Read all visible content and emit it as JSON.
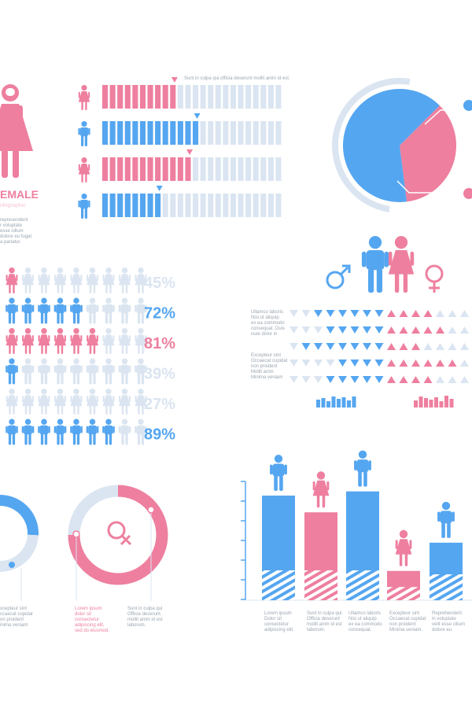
{
  "colors": {
    "pink": "#ee7f9f",
    "blue": "#55a6f0",
    "light": "#dbe5f1",
    "lightpink": "#f6c6d3"
  },
  "female_panel": {
    "title": "EMALE",
    "subtitle": "nfographic",
    "body": [
      "represendent",
      "r voluptate",
      "esse cillum",
      "dolore eu fugat",
      "a pariatur."
    ]
  },
  "bars_panel": {
    "caption": "Sunt in culpa qui officia deserunt mollit anim id est.",
    "rows": [
      {
        "gender": "female",
        "value": 0.4
      },
      {
        "gender": "male",
        "value": 0.55
      },
      {
        "gender": "female",
        "value": 0.48
      },
      {
        "gender": "male",
        "value": 0.34
      }
    ]
  },
  "donut_top": {
    "female": 0.48,
    "male": 0.52
  },
  "symbols_panel": {
    "left_text_1": [
      "Ullamco laboris",
      "Nisi ut aliquip",
      "ex ea commodo",
      "consequat. Duis",
      "nure dolor in"
    ],
    "left_text_2": [
      "Excepteur sint",
      "Occaecat cupidat",
      "non proident",
      "Mollit anim",
      "Minima veniam"
    ],
    "triangle_rows": [
      {
        "blue": 6,
        "pink": 4
      },
      {
        "blue": 5,
        "pink": 5
      },
      {
        "blue": 7,
        "pink": 3
      },
      {
        "blue": 4,
        "pink": 6
      },
      {
        "blue": 5,
        "pink": 4
      }
    ]
  },
  "people_rows": [
    {
      "gender": "female",
      "pct": "45%",
      "highlight": 1,
      "highlighted_text": false
    },
    {
      "gender": "male",
      "pct": "72%",
      "highlight": 5,
      "highlighted_text": true
    },
    {
      "gender": "female",
      "pct": "81%",
      "highlight": 6,
      "highlighted_text": true
    },
    {
      "gender": "male",
      "pct": "39%",
      "highlight": 1,
      "highlighted_text": false
    },
    {
      "gender": "female",
      "pct": "27%",
      "highlight": 0,
      "highlighted_text": false
    },
    {
      "gender": "male",
      "pct": "89%",
      "highlight": 7,
      "highlighted_text": true
    }
  ],
  "donut_left": {
    "text": [
      "xcepteur sint",
      "ccaecat cupidat",
      "on proident",
      "inima veniam"
    ]
  },
  "donut_female": {
    "value": 0.75,
    "text_left": [
      "Lorem ipsum",
      "dolor sit",
      "consectetur",
      "adipiscing elit,",
      "sed do eiusmod."
    ],
    "text_right": [
      "Sunt in culpa qui",
      "Officia deserunt",
      "mollit anim id est",
      "laborum."
    ]
  },
  "chart_data": {
    "type": "bar",
    "categories": [
      "male",
      "female",
      "male",
      "female",
      "male"
    ],
    "series": [
      {
        "values": [
          100,
          84,
          104,
          28,
          55
        ]
      }
    ],
    "ylim": [
      0,
      112
    ],
    "captions": [
      [
        "Lorem ipsum",
        "Dolor sit",
        "consectetur",
        "adipiscing elit."
      ],
      [
        "Sunt in culpa qui",
        "Officia deserunt",
        "mollit anim id est",
        "laborum."
      ],
      [
        "Ullamco laboris",
        "Nisi ut aliquip",
        "ex ea commodo",
        "consequat."
      ],
      [
        "Excepteur sint",
        "Occaecat cupidat",
        "non proident",
        "Minima veniam."
      ],
      [
        "Reprehenderit",
        "in voluptate",
        "velit esse cillum",
        "dolore eu."
      ]
    ]
  }
}
